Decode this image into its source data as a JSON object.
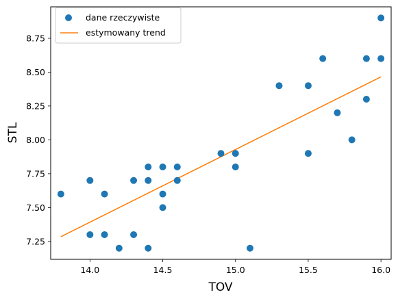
{
  "chart_data": {
    "type": "scatter",
    "xlabel": "TOV",
    "ylabel": "STL",
    "xlim": [
      13.73,
      16.07
    ],
    "ylim": [
      7.118,
      8.982
    ],
    "xticks": [
      14.0,
      14.5,
      15.0,
      15.5,
      16.0
    ],
    "xtick_labels": [
      "14.0",
      "14.5",
      "15.0",
      "15.5",
      "16.0"
    ],
    "yticks": [
      7.25,
      7.5,
      7.75,
      8.0,
      8.25,
      8.5,
      8.75
    ],
    "ytick_labels": [
      "7.25",
      "7.50",
      "7.75",
      "8.00",
      "8.25",
      "8.50",
      "8.75"
    ],
    "grid": false,
    "legend_position": "top-left",
    "series": [
      {
        "name": "dane rzeczywiste",
        "kind": "scatter",
        "color": "#1f77b4",
        "points": [
          [
            13.8,
            7.6
          ],
          [
            14.0,
            7.7
          ],
          [
            14.0,
            7.3
          ],
          [
            14.1,
            7.6
          ],
          [
            14.1,
            7.3
          ],
          [
            14.2,
            7.2
          ],
          [
            14.3,
            7.7
          ],
          [
            14.3,
            7.3
          ],
          [
            14.4,
            7.8
          ],
          [
            14.4,
            7.7
          ],
          [
            14.4,
            7.2
          ],
          [
            14.5,
            7.8
          ],
          [
            14.5,
            7.6
          ],
          [
            14.5,
            7.5
          ],
          [
            14.6,
            7.8
          ],
          [
            14.6,
            7.7
          ],
          [
            14.9,
            7.9
          ],
          [
            15.0,
            7.9
          ],
          [
            15.0,
            7.8
          ],
          [
            15.1,
            7.2
          ],
          [
            15.3,
            8.4
          ],
          [
            15.5,
            8.4
          ],
          [
            15.5,
            7.9
          ],
          [
            15.6,
            8.6
          ],
          [
            15.7,
            8.2
          ],
          [
            15.8,
            8.0
          ],
          [
            15.9,
            8.6
          ],
          [
            15.9,
            8.3
          ],
          [
            16.0,
            8.9
          ],
          [
            16.0,
            8.6
          ]
        ]
      },
      {
        "name": "estymowany trend",
        "kind": "line",
        "color": "#ff7f0e",
        "points": [
          [
            13.8,
            7.285
          ],
          [
            16.0,
            8.465
          ]
        ]
      }
    ]
  }
}
